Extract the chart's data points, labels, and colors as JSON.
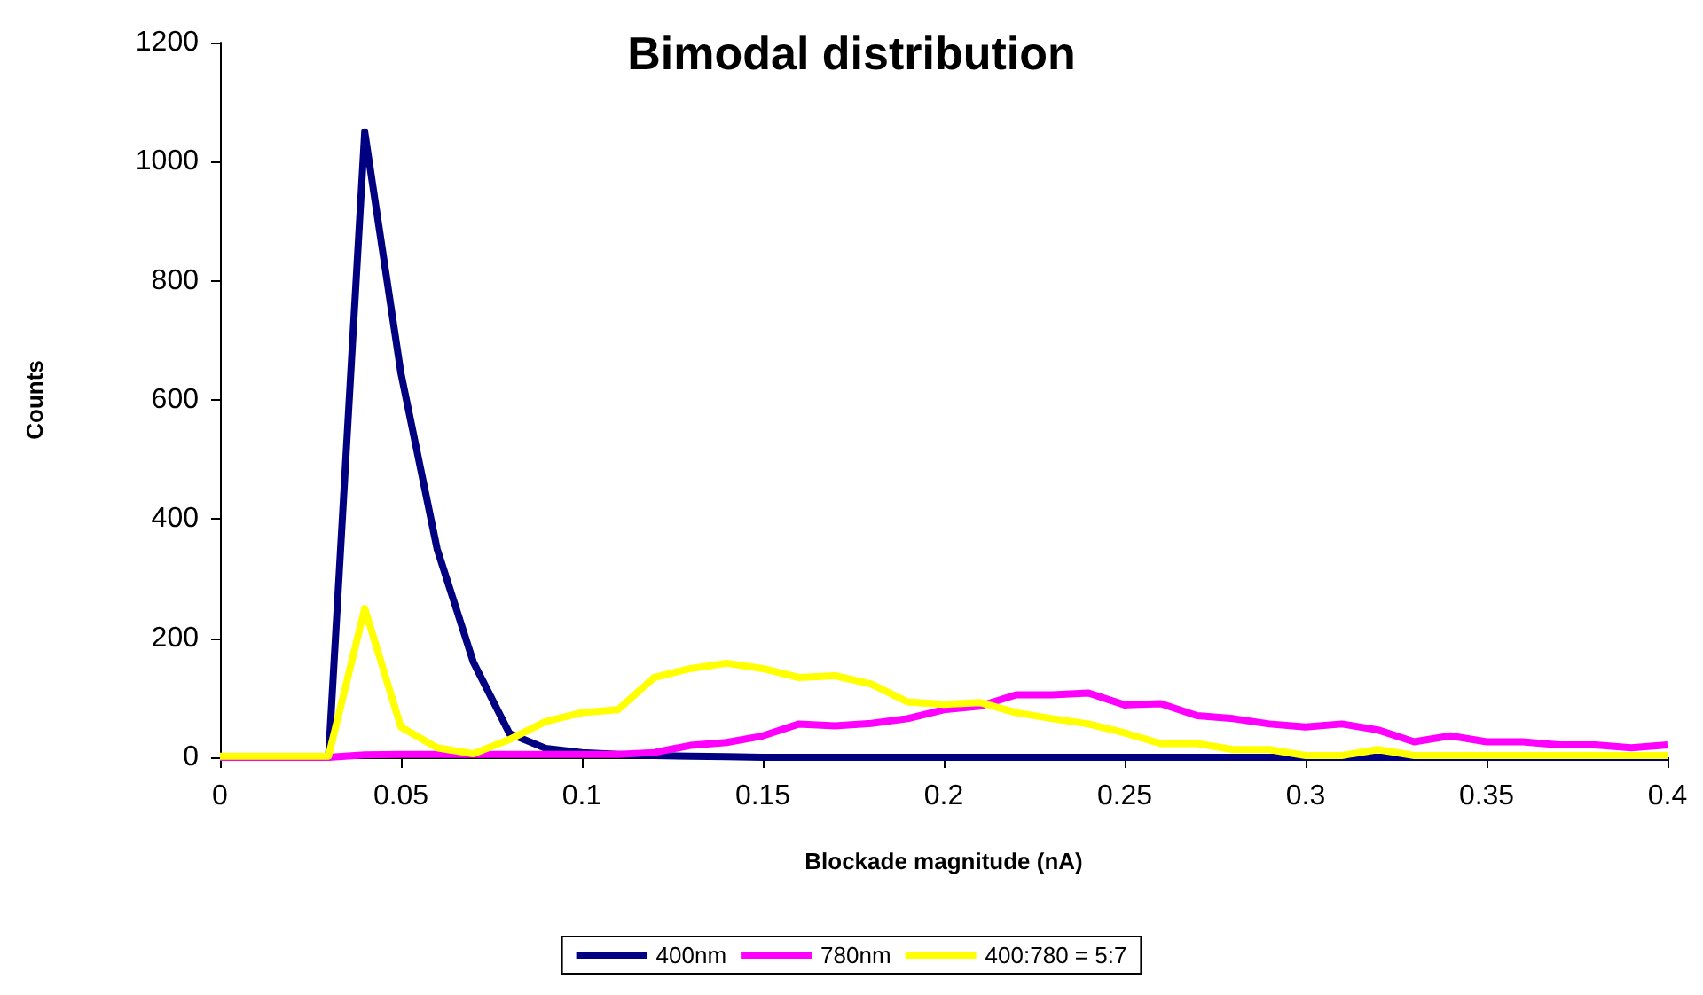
{
  "chart_data": {
    "type": "line",
    "title": "Bimodal distribution",
    "xlabel": "Blockade magnitude (nA)",
    "ylabel": "Counts",
    "x": [
      0,
      0.01,
      0.02,
      0.03,
      0.04,
      0.05,
      0.06,
      0.07,
      0.08,
      0.09,
      0.1,
      0.11,
      0.12,
      0.13,
      0.14,
      0.15,
      0.16,
      0.17,
      0.18,
      0.19,
      0.2,
      0.21,
      0.22,
      0.23,
      0.24,
      0.25,
      0.26,
      0.27,
      0.28,
      0.29,
      0.3,
      0.31,
      0.32,
      0.33,
      0.34,
      0.35,
      0.36,
      0.37,
      0.38,
      0.39,
      0.4
    ],
    "series": [
      {
        "name": "400nm",
        "color": "#000080",
        "values": [
          null,
          null,
          0,
          0,
          1050,
          645,
          350,
          160,
          40,
          15,
          8,
          5,
          3,
          2,
          1,
          0,
          0,
          0,
          0,
          0,
          0,
          0,
          0,
          0,
          0,
          0,
          0,
          0,
          0,
          0,
          0,
          0,
          0,
          0,
          0,
          0,
          0,
          0,
          0,
          0,
          0
        ]
      },
      {
        "name": "780nm",
        "color": "#ff00ff",
        "values": [
          0,
          0,
          0,
          0,
          4,
          5,
          5,
          5,
          5,
          5,
          5,
          5,
          8,
          20,
          25,
          36,
          56,
          53,
          57,
          65,
          80,
          86,
          105,
          105,
          108,
          88,
          90,
          70,
          65,
          56,
          51,
          56,
          46,
          26,
          36,
          26,
          26,
          21,
          21,
          16,
          21
        ]
      },
      {
        "name": "400:780 = 5:7",
        "color": "#ffff00",
        "values": [
          2,
          2,
          2,
          2,
          250,
          51,
          16,
          6,
          30,
          60,
          75,
          80,
          134,
          149,
          158,
          149,
          134,
          137,
          123,
          93,
          89,
          92,
          75,
          65,
          56,
          41,
          23,
          23,
          13,
          13,
          3,
          3,
          13,
          3,
          3,
          3,
          3,
          3,
          3,
          3,
          3
        ]
      }
    ],
    "xlim": [
      0,
      0.4
    ],
    "xticks": [
      0,
      0.05,
      0.1,
      0.15,
      0.2,
      0.25,
      0.3,
      0.35,
      0.4
    ],
    "ylim": [
      0,
      1200
    ],
    "yticks": [
      0,
      200,
      400,
      600,
      800,
      1000,
      1200
    ],
    "grid": false,
    "legend": "bottom",
    "marker": "none",
    "line_style": "solid"
  }
}
